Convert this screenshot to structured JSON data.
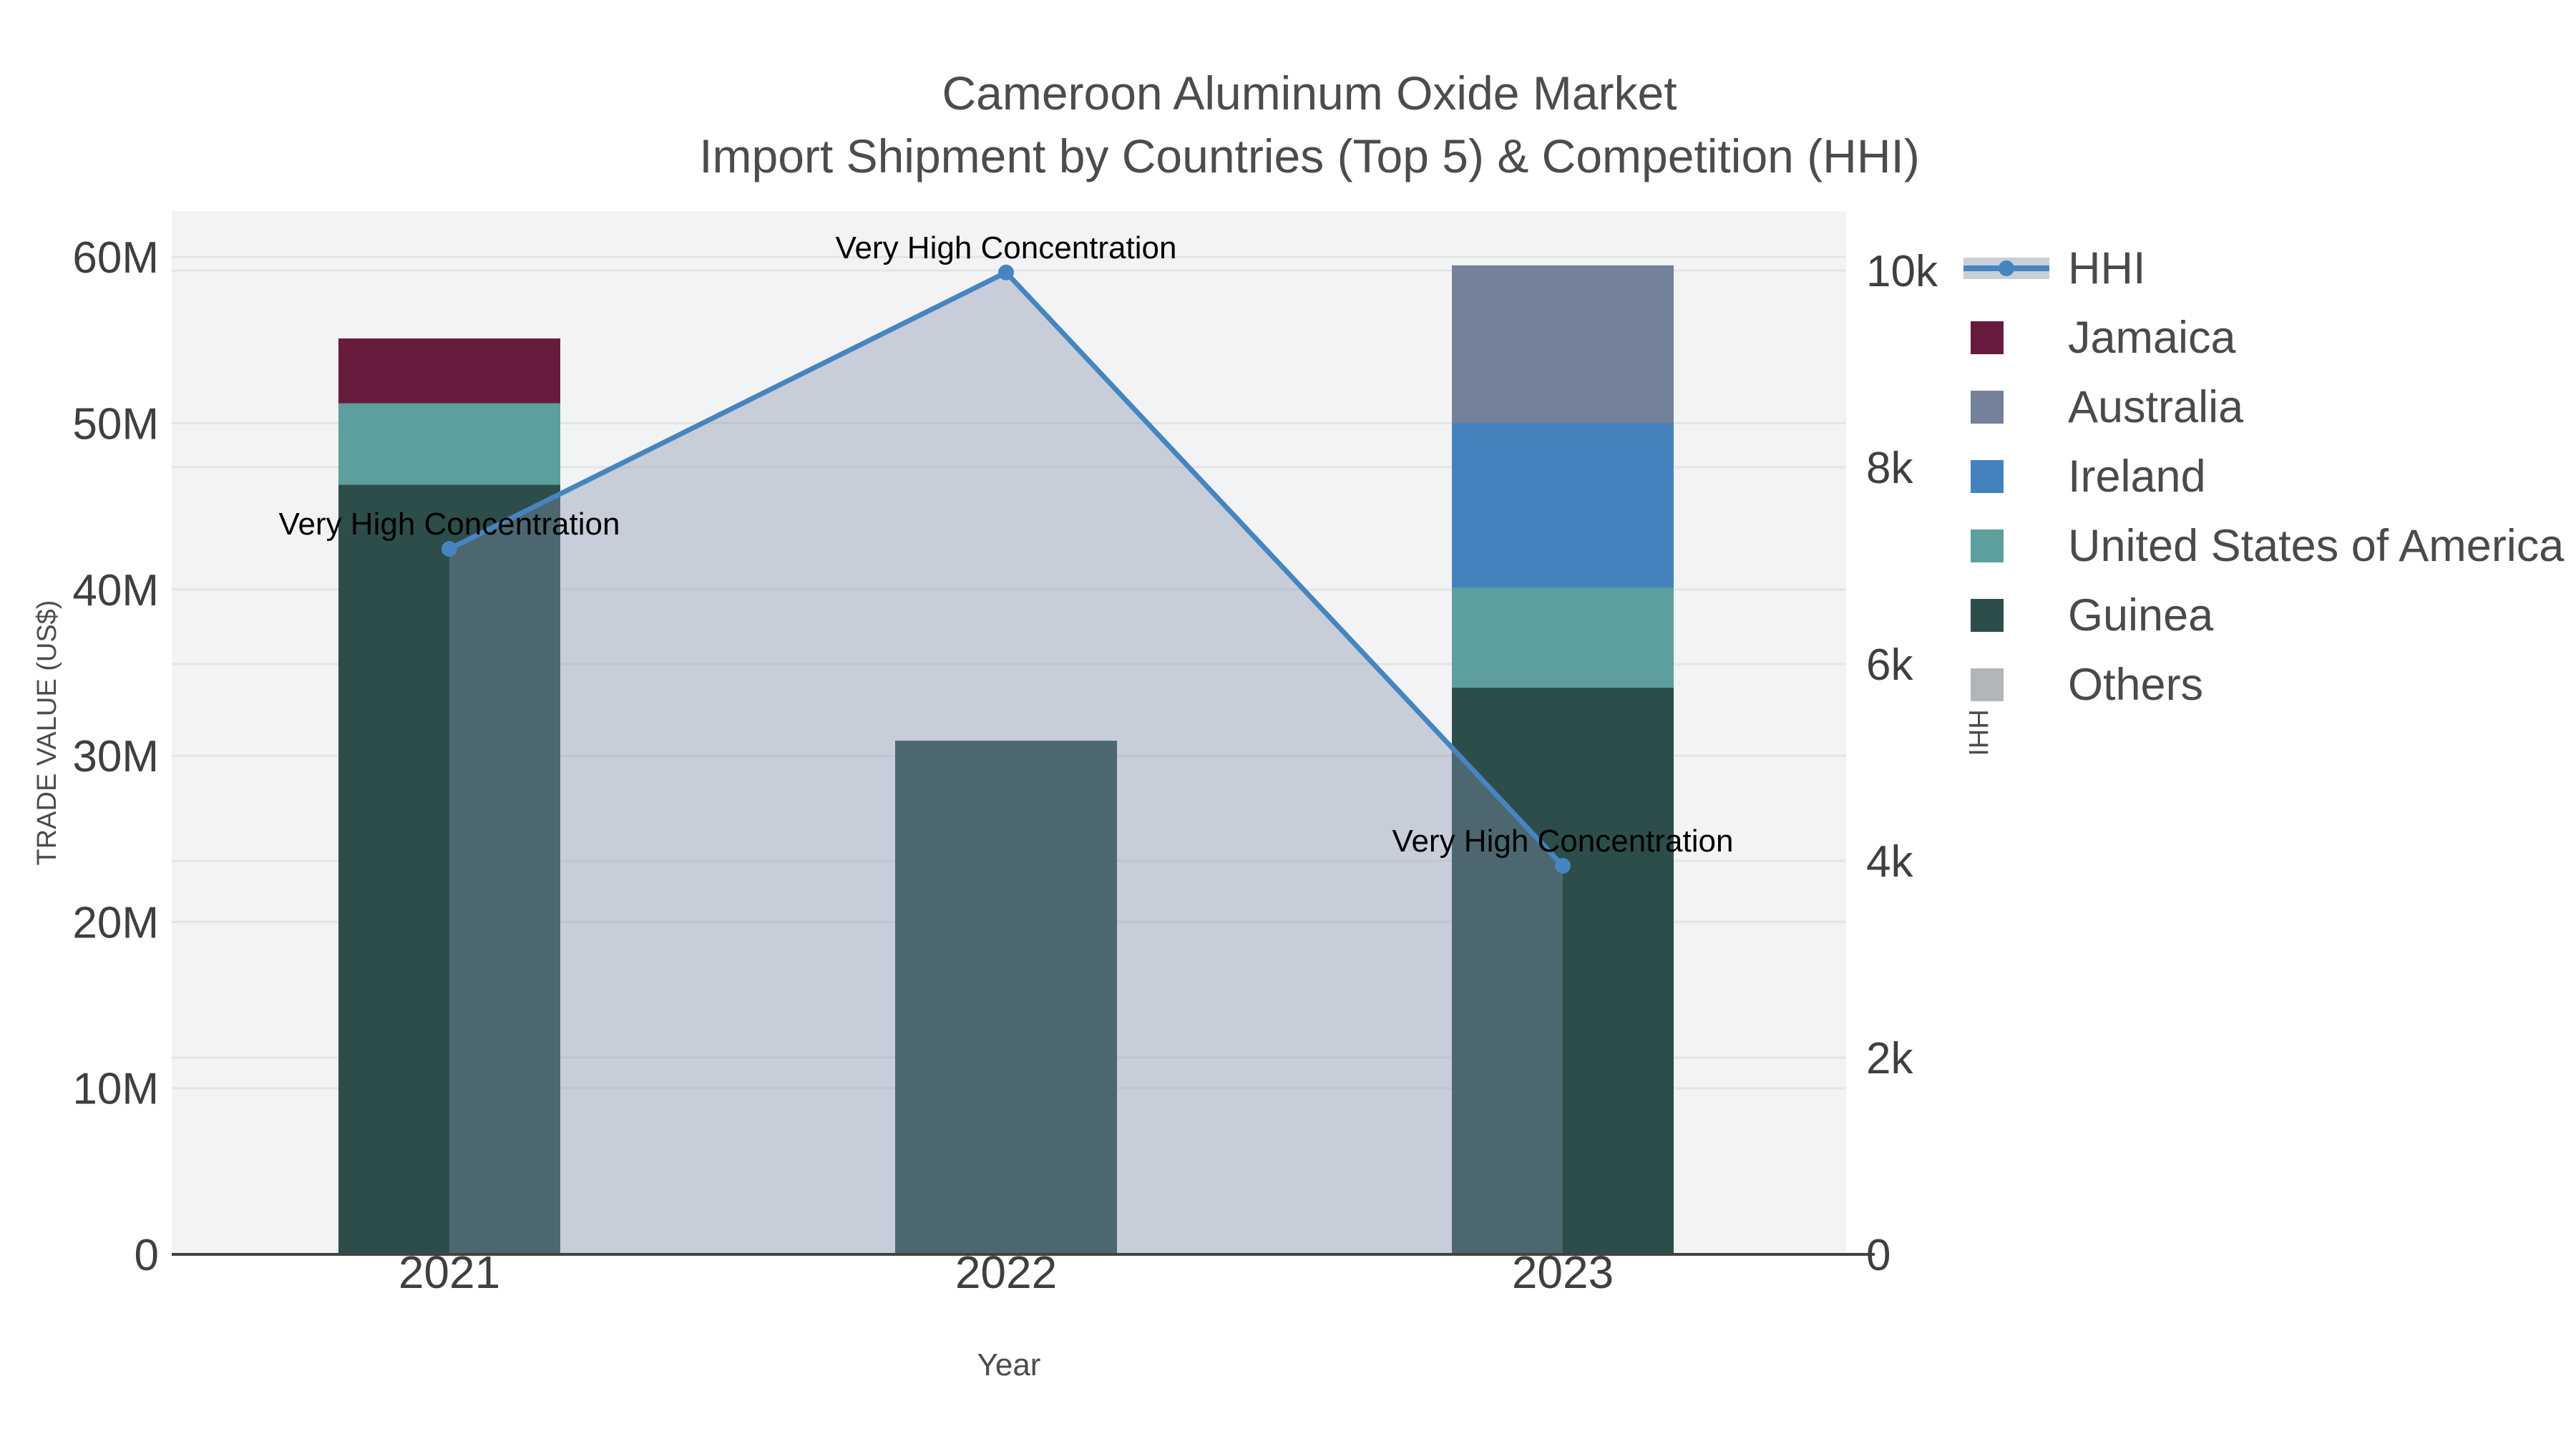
{
  "title": {
    "line1": "Cameroon Aluminum Oxide Market",
    "line2": "Import Shipment by Countries (Top 5) & Competition (HHI)"
  },
  "axes": {
    "x": {
      "title": "Year",
      "tick_labels": [
        "2021",
        "2022",
        "2023"
      ]
    },
    "y_left": {
      "title": "TRADE VALUE (US$)",
      "tick_labels": [
        "0",
        "10M",
        "20M",
        "30M",
        "40M",
        "50M",
        "60M"
      ],
      "tick_values_m": [
        0,
        10,
        20,
        30,
        40,
        50,
        60
      ],
      "max_m": 60
    },
    "y_right": {
      "title": "HHI",
      "tick_labels": [
        "0",
        "2k",
        "4k",
        "6k",
        "8k",
        "10k"
      ],
      "tick_values": [
        0,
        2000,
        4000,
        6000,
        8000,
        10000
      ],
      "max": 10000
    }
  },
  "legend": [
    {
      "label": "HHI",
      "type": "line",
      "line_color": "#4685BF",
      "band_color": "#C9CEDA"
    },
    {
      "label": "Jamaica",
      "type": "square",
      "color": "#691A3F"
    },
    {
      "label": "Australia",
      "type": "square",
      "color": "#73819A"
    },
    {
      "label": "Ireland",
      "type": "square",
      "color": "#4382BC"
    },
    {
      "label": "United States of America",
      "type": "square",
      "color": "#5C9F9D"
    },
    {
      "label": "Guinea",
      "type": "square",
      "color": "#2D4D4B"
    },
    {
      "label": "Others",
      "type": "square",
      "color": "#B3B6B8"
    }
  ],
  "chart_data": {
    "type": "combo: stacked bar (trade value, left axis) + line with area fill (HHI, right axis)",
    "categories": [
      "2021",
      "2022",
      "2023"
    ],
    "bar_unit": "million US$",
    "series": [
      {
        "name": "Guinea",
        "color": "#2D4D4B",
        "values": [
          46.3,
          30.9,
          34.1
        ]
      },
      {
        "name": "United States of America",
        "color": "#5C9F9D",
        "values": [
          4.9,
          0,
          6.0
        ]
      },
      {
        "name": "Ireland",
        "color": "#4382BC",
        "values": [
          0,
          0,
          9.9
        ]
      },
      {
        "name": "Australia",
        "color": "#73819A",
        "values": [
          0,
          0,
          9.5
        ]
      },
      {
        "name": "Jamaica",
        "color": "#691A3F",
        "values": [
          3.9,
          0,
          0
        ]
      },
      {
        "name": "Others",
        "color": "#B3B6B8",
        "values": [
          0,
          0,
          0
        ]
      }
    ],
    "bar_totals_m": [
      55.1,
      30.9,
      59.5
    ],
    "line_series": {
      "name": "HHI",
      "values": [
        7170,
        9980,
        3950
      ],
      "color": "#4685BF",
      "fill_color": "rgba(130,146,174,0.38)",
      "annotations": [
        "Very High Concentration",
        "Very High Concentration",
        "Very High Concentration"
      ]
    },
    "xlabel": "Year",
    "ylabel_left": "TRADE VALUE (US$)",
    "ylabel_right": "HHI",
    "y_left_range_m": [
      0,
      63
    ],
    "y_right_range": [
      0,
      10400
    ],
    "grid": true,
    "legend_position": "right"
  },
  "colors": {
    "plot_bg": "#F2F3F4",
    "grid": "#E2E4E7",
    "axis_line": "#424242",
    "tick_text": "#3F3F3F",
    "title_text": "#4C4C4C",
    "axis_title_text": "#4C4C4C",
    "annotation_text": "#000000"
  }
}
